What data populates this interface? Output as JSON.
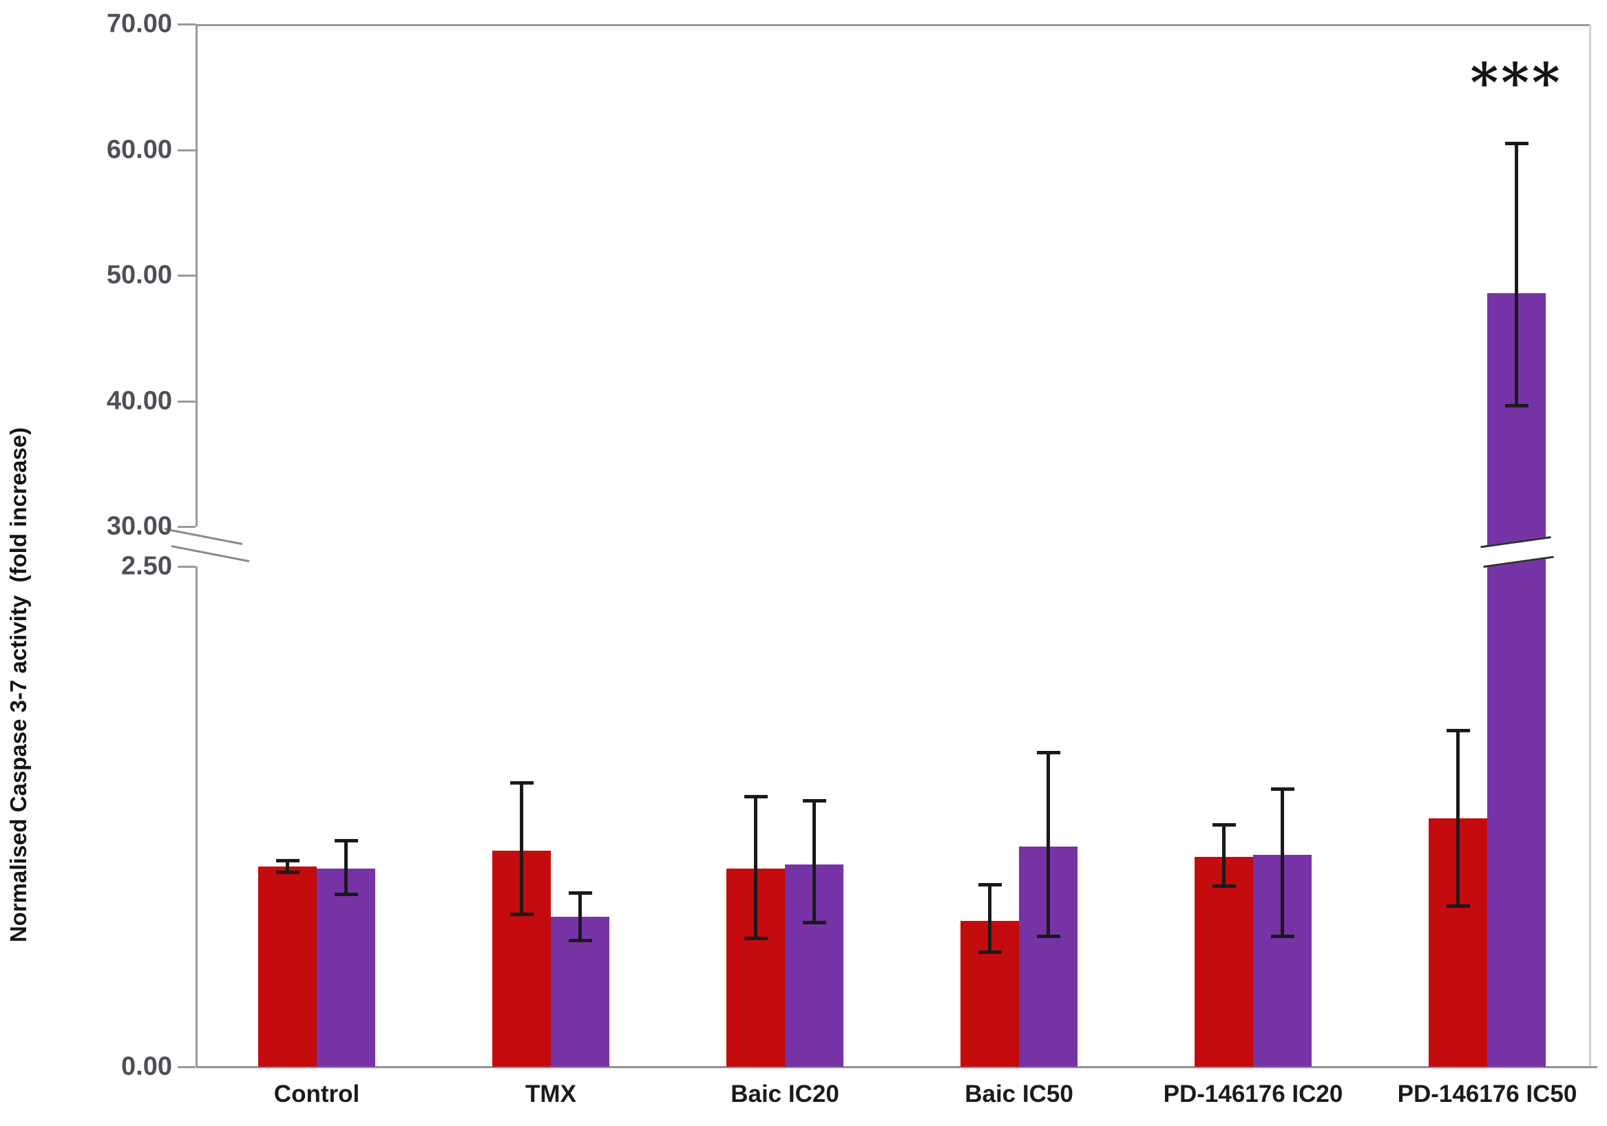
{
  "chart_data": {
    "type": "bar",
    "title": "",
    "ylabel": "Normalised Caspase 3-7 activity  (fold increase)",
    "xlabel": "",
    "categories": [
      "Control",
      "TMX",
      "Baic IC20",
      "Baic IC50",
      "PD-146176 IC20",
      "PD-146176 IC50"
    ],
    "series": [
      {
        "name": "series-red",
        "color": "#c40b0e",
        "values": [
          1.0,
          1.08,
          0.99,
          0.73,
          1.05,
          1.24
        ],
        "error_plus": [
          0.03,
          0.34,
          0.36,
          0.18,
          0.16,
          0.44
        ],
        "error_minus": [
          0.03,
          0.32,
          0.35,
          0.16,
          0.15,
          0.44
        ]
      },
      {
        "name": "series-purple",
        "color": "#7633a6",
        "values": [
          0.99,
          0.75,
          1.01,
          1.1,
          1.06,
          48.6
        ],
        "error_plus": [
          0.14,
          0.12,
          0.32,
          0.47,
          0.33,
          11.9
        ],
        "error_minus": [
          0.13,
          0.12,
          0.29,
          0.45,
          0.41,
          9.0
        ]
      }
    ],
    "y_axis": {
      "lower_range": [
        0,
        2.5
      ],
      "upper_range": [
        30,
        70
      ],
      "axis_break": true,
      "upper_ticks": [
        {
          "label": "70.00",
          "value": 70
        },
        {
          "label": "60.00",
          "value": 60
        },
        {
          "label": "50.00",
          "value": 50
        },
        {
          "label": "40.00",
          "value": 40
        },
        {
          "label": "30.00",
          "value": 30
        }
      ],
      "lower_ticks": [
        {
          "label": "2.50",
          "value": 2.5
        },
        {
          "label": "0.00",
          "value": 0
        }
      ]
    },
    "annotation": {
      "text": "***",
      "target_category": "PD-146176 IC50",
      "target_series": "series-purple"
    },
    "error_bar_color": "#1a1a1a",
    "axis_color": "#999999",
    "grid": false,
    "legend_position": "none"
  }
}
